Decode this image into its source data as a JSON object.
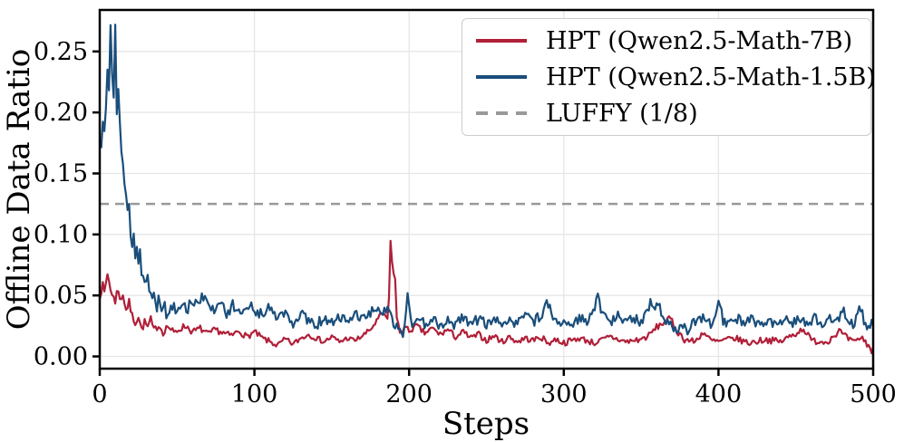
{
  "chart_data": {
    "type": "line",
    "title": "",
    "xlabel": "Steps",
    "ylabel": "Offline Data Ratio",
    "xlim": [
      0,
      500
    ],
    "ylim": [
      -0.01,
      0.284
    ],
    "grid": true,
    "grid_color": "#e6e6e6",
    "spine_color": "#000000",
    "xticks": [
      {
        "v": 0,
        "label": "0"
      },
      {
        "v": 100,
        "label": "100"
      },
      {
        "v": 200,
        "label": "200"
      },
      {
        "v": 300,
        "label": "300"
      },
      {
        "v": 400,
        "label": "400"
      },
      {
        "v": 500,
        "label": "500"
      }
    ],
    "yticks": [
      {
        "v": 0.0,
        "label": "0.00"
      },
      {
        "v": 0.05,
        "label": "0.05"
      },
      {
        "v": 0.1,
        "label": "0.10"
      },
      {
        "v": 0.15,
        "label": "0.15"
      },
      {
        "v": 0.2,
        "label": "0.20"
      },
      {
        "v": 0.25,
        "label": "0.25"
      }
    ],
    "legend_position": "upper-right",
    "reference_line": {
      "name": "LUFFY (1/8)",
      "value": 0.125,
      "color": "#999999",
      "style": "dashed"
    },
    "series": [
      {
        "name": "HPT (Qwen2.5-Math-7B)",
        "color": "#b01f38",
        "seed": 7,
        "noise_amp": [
          [
            0,
            0.003
          ],
          [
            10,
            0.0035
          ],
          [
            60,
            0.0028
          ],
          [
            180,
            0.002
          ],
          [
            192,
            0.0025
          ],
          [
            500,
            0.0028
          ]
        ],
        "keypoints": [
          [
            0,
            0.05
          ],
          [
            2,
            0.058
          ],
          [
            3,
            0.052
          ],
          [
            5,
            0.068
          ],
          [
            6,
            0.062
          ],
          [
            8,
            0.05
          ],
          [
            10,
            0.045
          ],
          [
            11,
            0.056
          ],
          [
            13,
            0.047
          ],
          [
            15,
            0.051
          ],
          [
            17,
            0.038
          ],
          [
            19,
            0.044
          ],
          [
            21,
            0.033
          ],
          [
            23,
            0.028
          ],
          [
            25,
            0.033
          ],
          [
            27,
            0.022
          ],
          [
            29,
            0.028
          ],
          [
            31,
            0.024
          ],
          [
            33,
            0.03
          ],
          [
            35,
            0.021
          ],
          [
            38,
            0.026
          ],
          [
            41,
            0.02
          ],
          [
            44,
            0.025
          ],
          [
            48,
            0.019
          ],
          [
            52,
            0.023
          ],
          [
            56,
            0.025
          ],
          [
            60,
            0.02
          ],
          [
            65,
            0.023
          ],
          [
            70,
            0.018
          ],
          [
            75,
            0.022
          ],
          [
            80,
            0.019
          ],
          [
            85,
            0.017
          ],
          [
            90,
            0.021
          ],
          [
            95,
            0.016
          ],
          [
            100,
            0.02
          ],
          [
            105,
            0.015
          ],
          [
            110,
            0.012
          ],
          [
            115,
            0.009
          ],
          [
            120,
            0.014
          ],
          [
            125,
            0.01
          ],
          [
            130,
            0.015
          ],
          [
            135,
            0.018
          ],
          [
            140,
            0.015
          ],
          [
            145,
            0.012
          ],
          [
            150,
            0.016
          ],
          [
            155,
            0.012
          ],
          [
            160,
            0.015
          ],
          [
            165,
            0.013
          ],
          [
            170,
            0.017
          ],
          [
            175,
            0.022
          ],
          [
            178,
            0.027
          ],
          [
            181,
            0.033
          ],
          [
            184,
            0.035
          ],
          [
            186,
            0.029
          ],
          [
            187,
            0.048
          ],
          [
            188,
            0.094
          ],
          [
            189,
            0.079
          ],
          [
            190,
            0.067
          ],
          [
            191,
            0.064
          ],
          [
            192,
            0.031
          ],
          [
            194,
            0.02
          ],
          [
            197,
            0.024
          ],
          [
            200,
            0.021
          ],
          [
            205,
            0.025
          ],
          [
            210,
            0.019
          ],
          [
            215,
            0.023
          ],
          [
            220,
            0.018
          ],
          [
            225,
            0.022
          ],
          [
            230,
            0.016
          ],
          [
            235,
            0.02
          ],
          [
            240,
            0.015
          ],
          [
            245,
            0.018
          ],
          [
            250,
            0.013
          ],
          [
            255,
            0.017
          ],
          [
            260,
            0.012
          ],
          [
            265,
            0.016
          ],
          [
            270,
            0.012
          ],
          [
            275,
            0.015
          ],
          [
            280,
            0.013
          ],
          [
            285,
            0.016
          ],
          [
            290,
            0.011
          ],
          [
            295,
            0.014
          ],
          [
            300,
            0.011
          ],
          [
            310,
            0.015
          ],
          [
            320,
            0.011
          ],
          [
            330,
            0.016
          ],
          [
            340,
            0.012
          ],
          [
            350,
            0.014
          ],
          [
            355,
            0.017
          ],
          [
            360,
            0.024
          ],
          [
            365,
            0.028
          ],
          [
            369,
            0.031
          ],
          [
            373,
            0.021
          ],
          [
            378,
            0.014
          ],
          [
            385,
            0.012
          ],
          [
            390,
            0.02
          ],
          [
            395,
            0.013
          ],
          [
            400,
            0.012
          ],
          [
            410,
            0.015
          ],
          [
            420,
            0.011
          ],
          [
            430,
            0.014
          ],
          [
            440,
            0.012
          ],
          [
            450,
            0.019
          ],
          [
            455,
            0.023
          ],
          [
            460,
            0.013
          ],
          [
            470,
            0.012
          ],
          [
            478,
            0.021
          ],
          [
            483,
            0.015
          ],
          [
            488,
            0.011
          ],
          [
            492,
            0.016
          ],
          [
            497,
            0.009
          ],
          [
            499,
            0.004
          ],
          [
            500,
            0.008
          ]
        ]
      },
      {
        "name": "HPT (Qwen2.5-Math-1.5B)",
        "color": "#1a4e7b",
        "seed": 15,
        "noise_amp": [
          [
            0,
            0.003
          ],
          [
            13,
            0.004
          ],
          [
            20,
            0.006
          ],
          [
            40,
            0.005
          ],
          [
            80,
            0.0045
          ],
          [
            500,
            0.0042
          ]
        ],
        "keypoints": [
          [
            0,
            0.178
          ],
          [
            1,
            0.172
          ],
          [
            2,
            0.193
          ],
          [
            3,
            0.185
          ],
          [
            4,
            0.205
          ],
          [
            5,
            0.234
          ],
          [
            6,
            0.215
          ],
          [
            7,
            0.273
          ],
          [
            8,
            0.235
          ],
          [
            9,
            0.213
          ],
          [
            10,
            0.273
          ],
          [
            11,
            0.2
          ],
          [
            12,
            0.223
          ],
          [
            13,
            0.19
          ],
          [
            14,
            0.17
          ],
          [
            15,
            0.16
          ],
          [
            16,
            0.145
          ],
          [
            17,
            0.128
          ],
          [
            18,
            0.115
          ],
          [
            19,
            0.121
          ],
          [
            20,
            0.1
          ],
          [
            21,
            0.095
          ],
          [
            22,
            0.101
          ],
          [
            23,
            0.086
          ],
          [
            24,
            0.091
          ],
          [
            25,
            0.08
          ],
          [
            26,
            0.085
          ],
          [
            27,
            0.071
          ],
          [
            28,
            0.065
          ],
          [
            30,
            0.06
          ],
          [
            31,
            0.066
          ],
          [
            33,
            0.05
          ],
          [
            34,
            0.046
          ],
          [
            35,
            0.056
          ],
          [
            37,
            0.041
          ],
          [
            38,
            0.046
          ],
          [
            40,
            0.036
          ],
          [
            42,
            0.041
          ],
          [
            44,
            0.031
          ],
          [
            46,
            0.046
          ],
          [
            47,
            0.036
          ],
          [
            48,
            0.042
          ],
          [
            50,
            0.034
          ],
          [
            53,
            0.044
          ],
          [
            56,
            0.038
          ],
          [
            60,
            0.046
          ],
          [
            63,
            0.04
          ],
          [
            66,
            0.05
          ],
          [
            70,
            0.042
          ],
          [
            74,
            0.036
          ],
          [
            78,
            0.044
          ],
          [
            82,
            0.034
          ],
          [
            86,
            0.042
          ],
          [
            90,
            0.036
          ],
          [
            95,
            0.044
          ],
          [
            100,
            0.038
          ],
          [
            105,
            0.034
          ],
          [
            110,
            0.04
          ],
          [
            115,
            0.03
          ],
          [
            120,
            0.036
          ],
          [
            125,
            0.028
          ],
          [
            130,
            0.034
          ],
          [
            135,
            0.03
          ],
          [
            140,
            0.026
          ],
          [
            145,
            0.032
          ],
          [
            150,
            0.027
          ],
          [
            155,
            0.033
          ],
          [
            160,
            0.028
          ],
          [
            165,
            0.034
          ],
          [
            170,
            0.03
          ],
          [
            175,
            0.036
          ],
          [
            180,
            0.042
          ],
          [
            183,
            0.034
          ],
          [
            186,
            0.04
          ],
          [
            189,
            0.03
          ],
          [
            193,
            0.022
          ],
          [
            196,
            0.016
          ],
          [
            199,
            0.048
          ],
          [
            202,
            0.028
          ],
          [
            205,
            0.032
          ],
          [
            210,
            0.026
          ],
          [
            215,
            0.031
          ],
          [
            220,
            0.025
          ],
          [
            225,
            0.03
          ],
          [
            230,
            0.026
          ],
          [
            235,
            0.032
          ],
          [
            240,
            0.027
          ],
          [
            245,
            0.031
          ],
          [
            250,
            0.026
          ],
          [
            255,
            0.03
          ],
          [
            260,
            0.025
          ],
          [
            265,
            0.031
          ],
          [
            270,
            0.027
          ],
          [
            275,
            0.033
          ],
          [
            280,
            0.028
          ],
          [
            285,
            0.034
          ],
          [
            290,
            0.044
          ],
          [
            293,
            0.03
          ],
          [
            296,
            0.026
          ],
          [
            300,
            0.031
          ],
          [
            305,
            0.027
          ],
          [
            310,
            0.032
          ],
          [
            315,
            0.028
          ],
          [
            318,
            0.036
          ],
          [
            322,
            0.048
          ],
          [
            325,
            0.034
          ],
          [
            330,
            0.028
          ],
          [
            335,
            0.033
          ],
          [
            340,
            0.027
          ],
          [
            345,
            0.032
          ],
          [
            350,
            0.028
          ],
          [
            356,
            0.044
          ],
          [
            359,
            0.038
          ],
          [
            361,
            0.044
          ],
          [
            364,
            0.032
          ],
          [
            368,
            0.026
          ],
          [
            371,
            0.022
          ],
          [
            373,
            0.018
          ],
          [
            376,
            0.026
          ],
          [
            380,
            0.022
          ],
          [
            385,
            0.028
          ],
          [
            390,
            0.031
          ],
          [
            395,
            0.026
          ],
          [
            400,
            0.045
          ],
          [
            403,
            0.03
          ],
          [
            407,
            0.026
          ],
          [
            412,
            0.031
          ],
          [
            417,
            0.026
          ],
          [
            422,
            0.031
          ],
          [
            427,
            0.025
          ],
          [
            432,
            0.03
          ],
          [
            437,
            0.026
          ],
          [
            442,
            0.031
          ],
          [
            447,
            0.027
          ],
          [
            452,
            0.032
          ],
          [
            457,
            0.026
          ],
          [
            462,
            0.031
          ],
          [
            467,
            0.027
          ],
          [
            472,
            0.033
          ],
          [
            477,
            0.028
          ],
          [
            480,
            0.04
          ],
          [
            484,
            0.03
          ],
          [
            488,
            0.026
          ],
          [
            491,
            0.042
          ],
          [
            494,
            0.03
          ],
          [
            497,
            0.024
          ],
          [
            500,
            0.027
          ]
        ]
      }
    ]
  }
}
